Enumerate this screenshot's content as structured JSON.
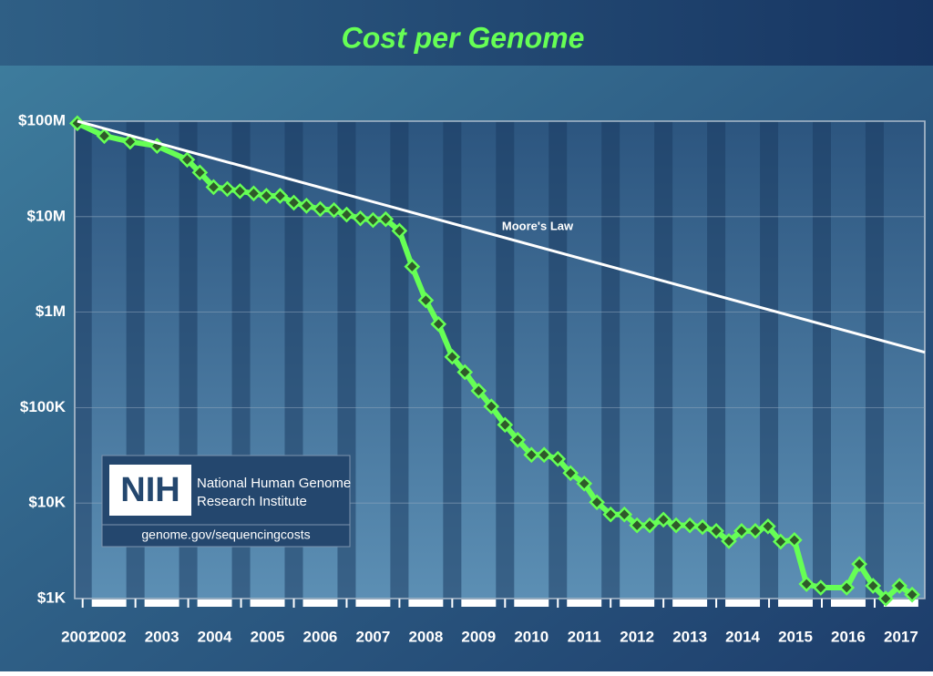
{
  "chart_data": {
    "type": "line",
    "title": "Cost per Genome",
    "log_scale_y": true,
    "grid": true,
    "ylim": [
      1000,
      100000000
    ],
    "yticks": [
      {
        "value": 1000,
        "label": "$1K"
      },
      {
        "value": 10000,
        "label": "$10K"
      },
      {
        "value": 100000,
        "label": "$100K"
      },
      {
        "value": 1000000,
        "label": "$1M"
      },
      {
        "value": 10000000,
        "label": "$10M"
      },
      {
        "value": 100000000,
        "label": "$100M"
      }
    ],
    "xlim": [
      2001.85,
      2017.95
    ],
    "xticks": [
      2001,
      2002,
      2003,
      2004,
      2005,
      2006,
      2007,
      2008,
      2009,
      2010,
      2011,
      2012,
      2013,
      2014,
      2015,
      2016,
      2017
    ],
    "series": [
      {
        "color": "#66ff55",
        "x": [
          2001.9,
          2002.41,
          2002.9,
          2003.41,
          2003.98,
          2004.22,
          2004.48,
          2004.74,
          2004.98,
          2005.24,
          2005.48,
          2005.74,
          2006.0,
          2006.24,
          2006.5,
          2006.76,
          2007.0,
          2007.26,
          2007.5,
          2007.74,
          2008.0,
          2008.24,
          2008.5,
          2008.74,
          2009.0,
          2009.24,
          2009.5,
          2009.74,
          2010.0,
          2010.24,
          2010.5,
          2010.74,
          2011.0,
          2011.24,
          2011.5,
          2011.74,
          2012.0,
          2012.26,
          2012.5,
          2012.74,
          2013.0,
          2013.24,
          2013.5,
          2013.74,
          2014.0,
          2014.24,
          2014.48,
          2014.74,
          2014.98,
          2015.22,
          2015.48,
          2015.71,
          2015.98,
          2016.47,
          2016.71,
          2016.97,
          2017.21,
          2017.47,
          2017.71
        ],
        "values": [
          95000000,
          70000000,
          61000000,
          55000000,
          39500000,
          29000000,
          20400000,
          19500000,
          18500000,
          17500000,
          16500000,
          16500000,
          14000000,
          13000000,
          12000000,
          11700000,
          10500000,
          9600000,
          9200000,
          9400000,
          7100000,
          3000000,
          1330000,
          750000,
          340000,
          235000,
          150000,
          103000,
          66000,
          46000,
          32000,
          32000,
          29000,
          20600,
          16000,
          10200,
          7600,
          7600,
          5850,
          5850,
          6700,
          5850,
          5850,
          5600,
          5100,
          4000,
          5100,
          5100,
          5700,
          3950,
          4100,
          1420,
          1300,
          1300,
          2300,
          1360,
          1000,
          1360,
          1100
        ]
      },
      {
        "name": "Moore's Law",
        "color": "#ffffff",
        "x": [
          2001.9,
          2017.95
        ],
        "values": [
          100000000,
          380000
        ]
      }
    ]
  },
  "logo": {
    "mark": "NIH",
    "line1": "National Human Genome",
    "line2": "Research Institute",
    "url": "genome.gov/sequencingcosts"
  }
}
